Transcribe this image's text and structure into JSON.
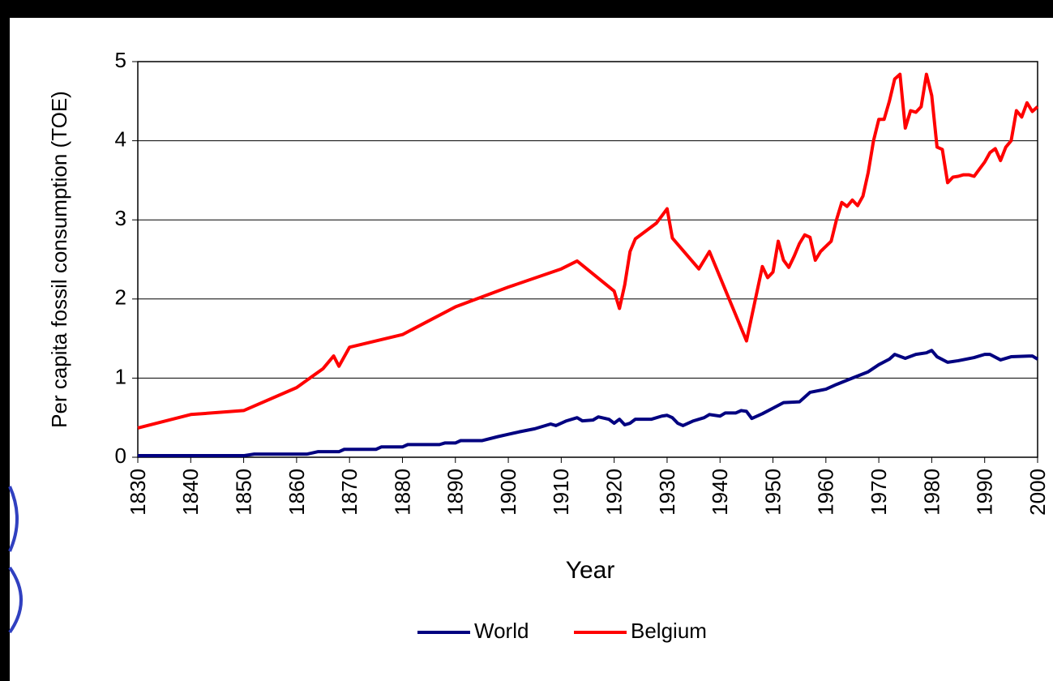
{
  "chart_data": {
    "type": "line",
    "xlabel": "Year",
    "ylabel": "Per capita fossil consumption (TOE)",
    "xlim": [
      1830,
      2000
    ],
    "xticks": [
      1830,
      1840,
      1850,
      1860,
      1870,
      1880,
      1890,
      1900,
      1910,
      1920,
      1930,
      1940,
      1950,
      1960,
      1970,
      1980,
      1990,
      2000
    ],
    "ylim": [
      0,
      5
    ],
    "yticks": [
      0,
      1,
      2,
      3,
      4,
      5
    ],
    "grid": true,
    "legend": "bottom",
    "series": [
      {
        "name": "World",
        "color": "#000080",
        "x": [
          1830,
          1850,
          1852,
          1862,
          1864,
          1868,
          1869,
          1875,
          1876,
          1880,
          1881,
          1887,
          1888,
          1890,
          1891,
          1895,
          1898,
          1900,
          1902,
          1905,
          1908,
          1909,
          1911,
          1913,
          1914,
          1916,
          1917,
          1919,
          1920,
          1921,
          1922,
          1923,
          1924,
          1927,
          1929,
          1930,
          1931,
          1932,
          1933,
          1935,
          1937,
          1938,
          1940,
          1941,
          1943,
          1944,
          1945,
          1946,
          1948,
          1950,
          1952,
          1955,
          1957,
          1960,
          1962,
          1965,
          1968,
          1970,
          1972,
          1973,
          1975,
          1977,
          1979,
          1980,
          1981,
          1983,
          1985,
          1988,
          1990,
          1991,
          1993,
          1995,
          1999,
          2000
        ],
        "values": [
          0.02,
          0.02,
          0.04,
          0.04,
          0.07,
          0.07,
          0.1,
          0.1,
          0.13,
          0.13,
          0.16,
          0.16,
          0.18,
          0.18,
          0.21,
          0.21,
          0.26,
          0.29,
          0.32,
          0.36,
          0.42,
          0.4,
          0.46,
          0.5,
          0.46,
          0.47,
          0.51,
          0.48,
          0.43,
          0.48,
          0.41,
          0.43,
          0.48,
          0.48,
          0.52,
          0.53,
          0.5,
          0.43,
          0.4,
          0.46,
          0.5,
          0.54,
          0.52,
          0.56,
          0.56,
          0.59,
          0.58,
          0.49,
          0.55,
          0.62,
          0.69,
          0.7,
          0.82,
          0.86,
          0.92,
          1.0,
          1.08,
          1.17,
          1.24,
          1.3,
          1.25,
          1.3,
          1.32,
          1.35,
          1.27,
          1.2,
          1.22,
          1.26,
          1.3,
          1.3,
          1.23,
          1.27,
          1.28,
          1.24
        ]
      },
      {
        "name": "Belgium",
        "color": "#ff0000",
        "x": [
          1830,
          1840,
          1850,
          1860,
          1865,
          1867,
          1868,
          1870,
          1880,
          1890,
          1900,
          1910,
          1913,
          1920,
          1921,
          1922,
          1923,
          1924,
          1928,
          1930,
          1931,
          1936,
          1938,
          1945,
          1948,
          1949,
          1950,
          1951,
          1952,
          1953,
          1954,
          1955,
          1956,
          1957,
          1958,
          1959,
          1961,
          1962,
          1963,
          1964,
          1965,
          1966,
          1967,
          1968,
          1969,
          1970,
          1971,
          1972,
          1973,
          1974,
          1975,
          1976,
          1977,
          1978,
          1979,
          1980,
          1981,
          1982,
          1983,
          1984,
          1985,
          1986,
          1987,
          1988,
          1989,
          1990,
          1991,
          1992,
          1993,
          1994,
          1995,
          1996,
          1997,
          1998,
          1999,
          2000
        ],
        "values": [
          0.37,
          0.54,
          0.59,
          0.88,
          1.12,
          1.28,
          1.15,
          1.39,
          1.55,
          1.9,
          2.15,
          2.38,
          2.48,
          2.1,
          1.88,
          2.18,
          2.6,
          2.76,
          2.96,
          3.14,
          2.77,
          2.38,
          2.6,
          1.47,
          2.41,
          2.27,
          2.34,
          2.73,
          2.49,
          2.4,
          2.54,
          2.7,
          2.81,
          2.78,
          2.49,
          2.6,
          2.73,
          3.0,
          3.22,
          3.17,
          3.25,
          3.18,
          3.3,
          3.6,
          4.0,
          4.27,
          4.27,
          4.5,
          4.78,
          4.84,
          4.16,
          4.38,
          4.36,
          4.43,
          4.84,
          4.57,
          3.92,
          3.89,
          3.47,
          3.54,
          3.55,
          3.57,
          3.57,
          3.55,
          3.64,
          3.73,
          3.85,
          3.9,
          3.75,
          3.92,
          4.0,
          4.38,
          4.3,
          4.48,
          4.37,
          4.43
        ]
      }
    ]
  }
}
